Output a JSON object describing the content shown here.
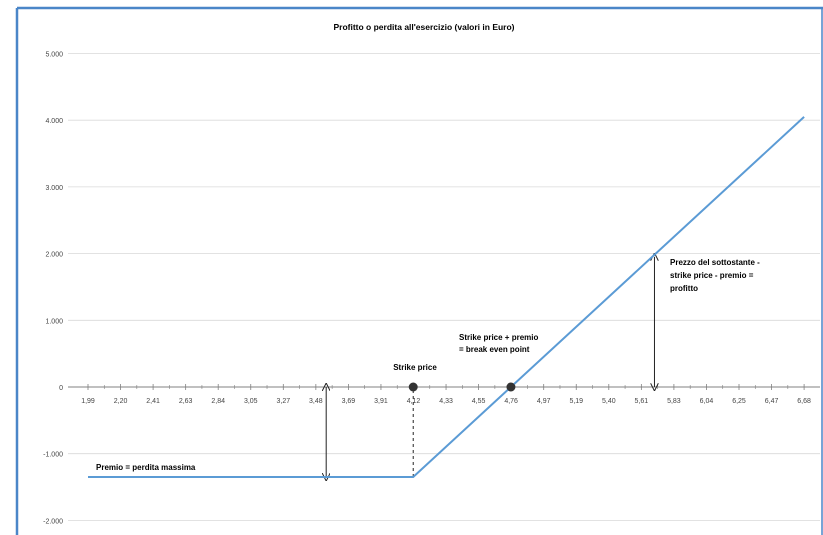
{
  "chart_data": {
    "type": "line",
    "title": "Profitto o perdita all'esercizio (valori in Euro)",
    "xlabel": "",
    "ylabel": "",
    "categories": [
      "1,99",
      "2,20",
      "2,41",
      "2,63",
      "2,84",
      "3,05",
      "3,27",
      "3,48",
      "3,69",
      "3,91",
      "4,12",
      "4,33",
      "4,55",
      "4,76",
      "4,97",
      "5,19",
      "5,40",
      "5,61",
      "5,83",
      "6,04",
      "6,25",
      "6,47",
      "6,68"
    ],
    "y_ticks": [
      {
        "value": 5000,
        "label": "5.000"
      },
      {
        "value": 4000,
        "label": "4.000"
      },
      {
        "value": 3000,
        "label": "3.000"
      },
      {
        "value": 2000,
        "label": "2.000"
      },
      {
        "value": 1000,
        "label": "1.000"
      },
      {
        "value": 0,
        "label": "0"
      },
      {
        "value": -1000,
        "label": "-1.000"
      },
      {
        "value": -2000,
        "label": "-2.000"
      }
    ],
    "ylim": [
      -2000,
      5000
    ],
    "grid": true,
    "legend": "none",
    "series": [
      {
        "color": "#5b9bd5",
        "points": [
          {
            "x": 1.99,
            "y": -1350
          },
          {
            "x": 4.12,
            "y": -1350
          },
          {
            "x": 6.68,
            "y": 4050
          }
        ]
      }
    ],
    "markers": [
      {
        "x": 4.12,
        "y": 0
      },
      {
        "x": 4.76,
        "y": 0
      }
    ],
    "annotations": {
      "strike_price": "Strike price",
      "break_even_line1": "Strike price + premio",
      "break_even_line2": "= break even point",
      "profit_line1": "Prezzo del sottostante -",
      "profit_line2": "strike price - premio =",
      "profit_line3": "profitto",
      "premium": "Premio = perdita massima"
    },
    "arrows": [
      {
        "x": 3.55,
        "y_from": -1350,
        "y_to": 0
      },
      {
        "x": 5.7,
        "y_from": 0,
        "y_to": 1950
      }
    ],
    "dashed": [
      {
        "x": 4.12,
        "y_from": -1350,
        "y_to": 0
      }
    ]
  }
}
